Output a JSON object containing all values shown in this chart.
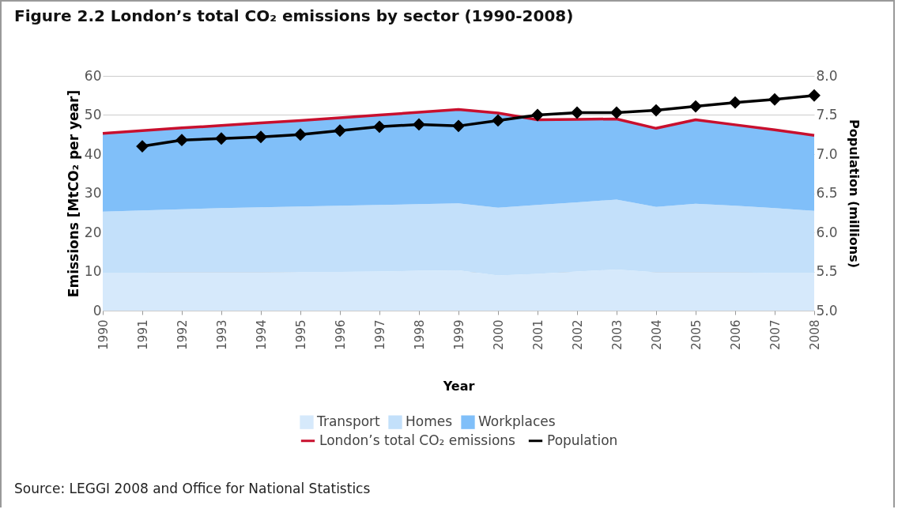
{
  "chart_data": {
    "type": "area",
    "title": "Figure 2.2  London’s total CO₂ emissions by sector (1990-2008)",
    "xlabel": "Year",
    "ylabel": "Emissions [MtCO₂ per year]",
    "y2label": "Population (millions)",
    "categories": [
      "1990",
      "1991",
      "1992",
      "1993",
      "1994",
      "1995",
      "1996",
      "1997",
      "1998",
      "1999",
      "2000",
      "2001",
      "2002",
      "2003",
      "2004",
      "2005",
      "2006",
      "2007",
      "2008"
    ],
    "stacked": true,
    "grid": "y",
    "legend": "bottom",
    "ylim": [
      0,
      60
    ],
    "yticks": [
      0,
      10,
      20,
      30,
      40,
      50,
      60
    ],
    "y2lim": [
      5,
      8
    ],
    "y2ticks": [
      {
        "value": 5,
        "label": "5.0"
      },
      5.5,
      {
        "value": 6,
        "label": "6.0"
      },
      6.5,
      {
        "value": 7,
        "label": "7.0"
      },
      7.5,
      {
        "value": 8,
        "label": "8.0"
      }
    ],
    "series": [
      {
        "name": "Transport",
        "color": "#d6e9fb",
        "values": [
          9.7,
          9.7,
          9.8,
          9.8,
          9.8,
          9.9,
          9.9,
          10,
          10.2,
          10.3,
          9,
          9.4,
          10,
          10.5,
          9.8,
          9.8,
          9.8,
          9.6,
          9.6
        ]
      },
      {
        "name": "Homes",
        "color": "#c3e0fa",
        "values": [
          15.6,
          15.9,
          16.1,
          16.4,
          16.6,
          16.7,
          16.9,
          17,
          17,
          17.1,
          17.3,
          17.6,
          17.7,
          17.9,
          16.7,
          17.5,
          17,
          16.6,
          15.9
        ]
      },
      {
        "name": "Workplaces",
        "color": "#80bff9",
        "values": [
          20,
          20.4,
          20.8,
          21.1,
          21.6,
          22,
          22.5,
          23,
          23.5,
          24,
          24.2,
          21.8,
          21.2,
          20.6,
          20.1,
          21.5,
          20.7,
          20,
          19.3
        ]
      },
      {
        "name": "London’s total CO₂ emissions",
        "type": "line",
        "color": "#c8102e",
        "marker": "none",
        "values": [
          45.3,
          46,
          46.7,
          47.3,
          48,
          48.6,
          49.3,
          50,
          50.7,
          51.4,
          50.5,
          48.8,
          48.9,
          49,
          46.6,
          48.8,
          47.5,
          46.2,
          44.8
        ]
      },
      {
        "name": "Population",
        "type": "line",
        "axis": "y2",
        "color": "#000000",
        "marker": "diamond",
        "values": [
          null,
          7.1,
          7.18,
          7.2,
          7.22,
          7.25,
          7.3,
          7.35,
          7.38,
          7.36,
          7.43,
          7.5,
          7.53,
          7.53,
          7.56,
          7.61,
          7.66,
          7.7,
          7.75
        ]
      }
    ],
    "annotations": [
      "Source: LEGGI 2008 and Office for National Statistics"
    ]
  }
}
